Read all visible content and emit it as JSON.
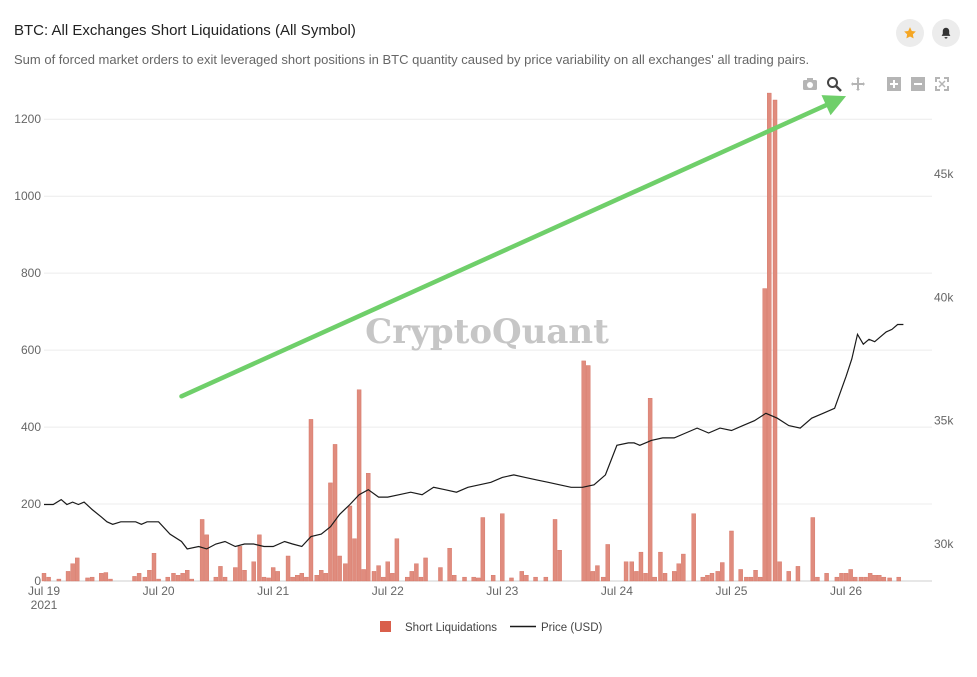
{
  "header": {
    "title": "BTC: All Exchanges Short Liquidations (All Symbol)",
    "subtitle": "Sum of forced market orders to exit leveraged short positions in BTC quantity caused by price variability on all exchanges' all trading pairs."
  },
  "watermark": "CryptoQuant",
  "toolbar": {
    "buttons": [
      {
        "name": "camera-icon",
        "active": false
      },
      {
        "name": "zoom-icon",
        "active": true
      },
      {
        "name": "pan-icon",
        "active": false
      },
      {
        "name": "zoom-in-icon",
        "active": false
      },
      {
        "name": "zoom-out-icon",
        "active": false
      },
      {
        "name": "autoscale-icon",
        "active": false
      }
    ],
    "star_icon": "star-icon",
    "bell_icon": "bell-icon"
  },
  "colors": {
    "bar": "#e08c7e",
    "bar_edge": "#d36f5f",
    "legend_bar": "#d95f4b",
    "line": "#1a1a1a",
    "arrow": "#6fcf6a",
    "grid": "#ececec",
    "axis_text": "#666666",
    "watermark": "#bdbdbd",
    "star": "#f5a623"
  },
  "chart_data": {
    "type": "bar",
    "title": "BTC: All Exchanges Short Liquidations (All Symbol)",
    "x_ticks": [
      "Jul 19\n2021",
      "Jul 20",
      "Jul 21",
      "Jul 22",
      "Jul 23",
      "Jul 24",
      "Jul 25",
      "Jul 26"
    ],
    "x_range_days": [
      0,
      7.75
    ],
    "y_left": {
      "range": [
        0,
        1250
      ],
      "ticks": [
        0,
        200,
        400,
        600,
        800,
        1000,
        1200
      ]
    },
    "y_right": {
      "range": [
        28500,
        48000
      ],
      "ticks": [
        30000,
        35000,
        40000,
        45000
      ],
      "tick_labels": [
        "30k",
        "35k",
        "40k",
        "45k"
      ]
    },
    "grid": true,
    "legend_position": "bottom-center",
    "series": [
      {
        "name": "Short Liquidations",
        "type": "bar",
        "axis": "left",
        "x": [
          0.0,
          0.04,
          0.13,
          0.21,
          0.25,
          0.29,
          0.38,
          0.42,
          0.5,
          0.54,
          0.58,
          0.79,
          0.83,
          0.88,
          0.92,
          0.96,
          1.0,
          1.08,
          1.13,
          1.17,
          1.21,
          1.25,
          1.29,
          1.38,
          1.42,
          1.5,
          1.54,
          1.58,
          1.67,
          1.71,
          1.75,
          1.83,
          1.88,
          1.92,
          1.96,
          2.0,
          2.04,
          2.13,
          2.17,
          2.21,
          2.25,
          2.29,
          2.33,
          2.38,
          2.42,
          2.46,
          2.5,
          2.54,
          2.58,
          2.63,
          2.67,
          2.71,
          2.75,
          2.79,
          2.83,
          2.88,
          2.92,
          2.96,
          3.0,
          3.04,
          3.08,
          3.17,
          3.21,
          3.25,
          3.29,
          3.33,
          3.46,
          3.54,
          3.58,
          3.67,
          3.75,
          3.79,
          3.83,
          3.92,
          4.0,
          4.08,
          4.17,
          4.21,
          4.29,
          4.38,
          4.46,
          4.5,
          4.71,
          4.75,
          4.79,
          4.83,
          4.88,
          4.92,
          5.08,
          5.13,
          5.17,
          5.21,
          5.25,
          5.29,
          5.33,
          5.38,
          5.42,
          5.5,
          5.54,
          5.58,
          5.67,
          5.75,
          5.79,
          5.83,
          5.88,
          5.92,
          6.0,
          6.08,
          6.13,
          6.17,
          6.21,
          6.25,
          6.29,
          6.33,
          6.38,
          6.42,
          6.5,
          6.58,
          6.71,
          6.75,
          6.83,
          6.92,
          6.96,
          7.0,
          7.04,
          7.08,
          7.13,
          7.17,
          7.21,
          7.25,
          7.29,
          7.33,
          7.38,
          7.46
        ],
        "values": [
          20,
          10,
          5,
          25,
          45,
          60,
          8,
          10,
          20,
          22,
          5,
          12,
          20,
          10,
          28,
          72,
          5,
          10,
          20,
          15,
          20,
          28,
          5,
          160,
          120,
          10,
          38,
          10,
          35,
          90,
          28,
          50,
          120,
          10,
          8,
          35,
          25,
          65,
          10,
          15,
          20,
          10,
          420,
          15,
          28,
          20,
          255,
          355,
          65,
          45,
          195,
          110,
          497,
          30,
          280,
          25,
          40,
          10,
          50,
          20,
          110,
          10,
          25,
          45,
          10,
          60,
          35,
          85,
          15,
          10,
          10,
          8,
          165,
          15,
          175,
          8,
          25,
          15,
          10,
          10,
          160,
          80,
          572,
          560,
          25,
          40,
          10,
          95,
          50,
          50,
          25,
          75,
          20,
          475,
          10,
          75,
          20,
          25,
          45,
          70,
          175,
          10,
          15,
          20,
          25,
          48,
          130,
          30,
          10,
          10,
          28,
          10,
          760,
          1268,
          1250,
          50,
          25,
          38,
          165,
          10,
          20,
          10,
          20,
          20,
          30,
          10,
          10,
          10,
          20,
          15,
          15,
          10,
          8,
          10
        ]
      },
      {
        "name": "Price (USD)",
        "type": "line",
        "axis": "right",
        "x": [
          0.0,
          0.08,
          0.15,
          0.2,
          0.25,
          0.3,
          0.35,
          0.42,
          0.5,
          0.55,
          0.6,
          0.67,
          0.75,
          0.8,
          0.85,
          0.9,
          1.0,
          1.1,
          1.2,
          1.25,
          1.35,
          1.42,
          1.5,
          1.58,
          1.67,
          1.75,
          1.83,
          1.92,
          2.0,
          2.1,
          2.17,
          2.25,
          2.33,
          2.42,
          2.5,
          2.58,
          2.67,
          2.75,
          2.83,
          2.92,
          3.0,
          3.1,
          3.2,
          3.3,
          3.4,
          3.5,
          3.6,
          3.7,
          3.8,
          3.9,
          4.0,
          4.1,
          4.2,
          4.3,
          4.4,
          4.5,
          4.6,
          4.7,
          4.8,
          4.9,
          5.0,
          5.1,
          5.15,
          5.2,
          5.25,
          5.3,
          5.4,
          5.5,
          5.6,
          5.7,
          5.75,
          5.8,
          5.9,
          6.0,
          6.1,
          6.2,
          6.3,
          6.4,
          6.5,
          6.6,
          6.7,
          6.8,
          6.9,
          7.0,
          7.05,
          7.1,
          7.15,
          7.2,
          7.25,
          7.3,
          7.35,
          7.4,
          7.45,
          7.5
        ],
        "values": [
          31600,
          31600,
          31800,
          31600,
          31700,
          31600,
          31700,
          31400,
          31100,
          30900,
          30800,
          30900,
          30900,
          30900,
          30800,
          30900,
          30900,
          30400,
          30100,
          29800,
          29900,
          29800,
          30000,
          30100,
          29900,
          30000,
          30000,
          29900,
          29900,
          30100,
          30000,
          29900,
          30300,
          30400,
          30700,
          31200,
          31600,
          32000,
          32200,
          31900,
          31900,
          32000,
          32100,
          32000,
          32300,
          32200,
          32100,
          32300,
          32400,
          32500,
          32700,
          32800,
          32700,
          32600,
          32500,
          32400,
          32300,
          32300,
          32400,
          32800,
          34000,
          34100,
          34100,
          34000,
          34100,
          34200,
          34300,
          34300,
          34500,
          34700,
          34600,
          34500,
          34700,
          34600,
          34800,
          35000,
          35300,
          35100,
          34800,
          34700,
          35100,
          35300,
          35500,
          36800,
          37500,
          38500,
          38100,
          38300,
          38200,
          38400,
          38600,
          38700,
          38900,
          38900
        ]
      }
    ],
    "annotation": {
      "type": "arrow",
      "from_day": 1.2,
      "from_y": 480,
      "to_day": 7.0,
      "to_y": 1260
    }
  },
  "legend": {
    "items": [
      {
        "label": "Short Liquidations",
        "kind": "bar"
      },
      {
        "label": "Price (USD)",
        "kind": "line"
      }
    ]
  }
}
